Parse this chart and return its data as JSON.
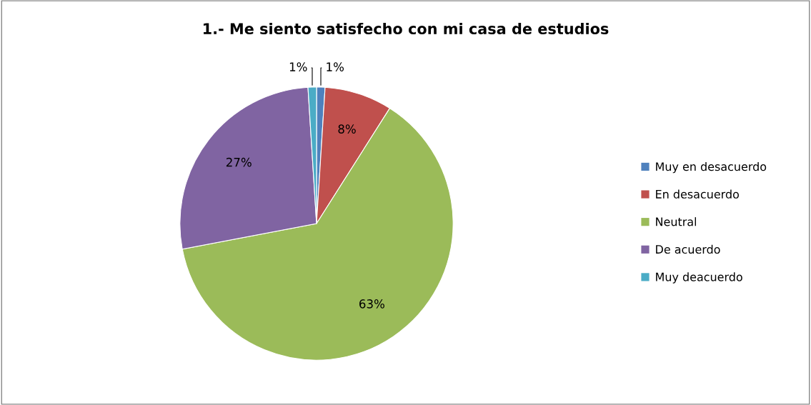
{
  "chart_data": {
    "type": "pie",
    "title": "1.- Me siento satisfecho con mi casa de estudios",
    "categories": [
      "Muy en desacuerdo",
      "En desacuerdo",
      "Neutral",
      "De acuerdo",
      "Muy deacuerdo"
    ],
    "values": [
      1,
      8,
      63,
      27,
      1
    ],
    "colors": [
      "#4f81bd",
      "#c0504d",
      "#9bbb59",
      "#8064a2",
      "#4bacc6"
    ],
    "value_labels": [
      "1%",
      "8%",
      "63%",
      "27%",
      "1%"
    ],
    "legend": "right"
  }
}
